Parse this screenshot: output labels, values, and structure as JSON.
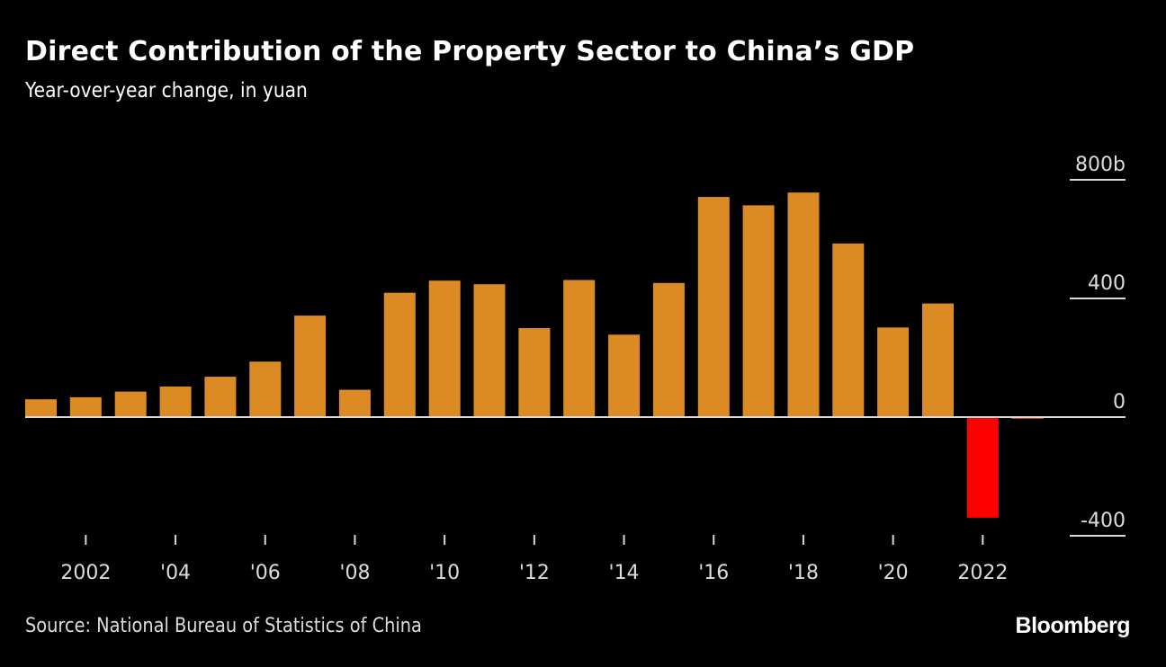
{
  "header": {
    "title": "Direct Contribution of the Property Sector to China’s GDP",
    "subtitle": "Year-over-year change, in yuan"
  },
  "footer": {
    "source": "Source: National Bureau of Statistics of China",
    "brand": "Bloomberg"
  },
  "colors": {
    "positive": "#dc8b24",
    "negative": "#ff0000",
    "small_negative": "#c0450f",
    "axis": "#d9d9d9",
    "background": "#000000"
  },
  "chart_data": {
    "type": "bar",
    "title": "Direct Contribution of the Property Sector to China’s GDP",
    "subtitle": "Year-over-year change, in yuan",
    "xlabel": "",
    "ylabel": "",
    "unit": "billion yuan",
    "categories": [
      "2001",
      "2002",
      "2003",
      "2004",
      "2005",
      "2006",
      "2007",
      "2008",
      "2009",
      "2010",
      "2011",
      "2012",
      "2013",
      "2014",
      "2015",
      "2016",
      "2017",
      "2018",
      "2019",
      "2020",
      "2021",
      "2022",
      "2023"
    ],
    "values": [
      60,
      67,
      86,
      103,
      136,
      187,
      342,
      92,
      419,
      460,
      448,
      300,
      462,
      278,
      452,
      742,
      714,
      757,
      585,
      302,
      383,
      -339,
      -5
    ],
    "ylim": [
      -400,
      800
    ],
    "y_ticks": [
      800,
      400,
      0,
      -400
    ],
    "y_tick_labels": [
      "800b",
      "400",
      "0",
      "-400"
    ],
    "x_ticks": [
      "2002",
      "2004",
      "2006",
      "2008",
      "2010",
      "2012",
      "2014",
      "2016",
      "2018",
      "2020",
      "2022"
    ],
    "x_tick_labels": [
      "2002",
      "'04",
      "'06",
      "'08",
      "'10",
      "'12",
      "'14",
      "'16",
      "'18",
      "'20",
      "2022"
    ],
    "y_axis_position": "right",
    "grid": false,
    "legend": "none"
  }
}
